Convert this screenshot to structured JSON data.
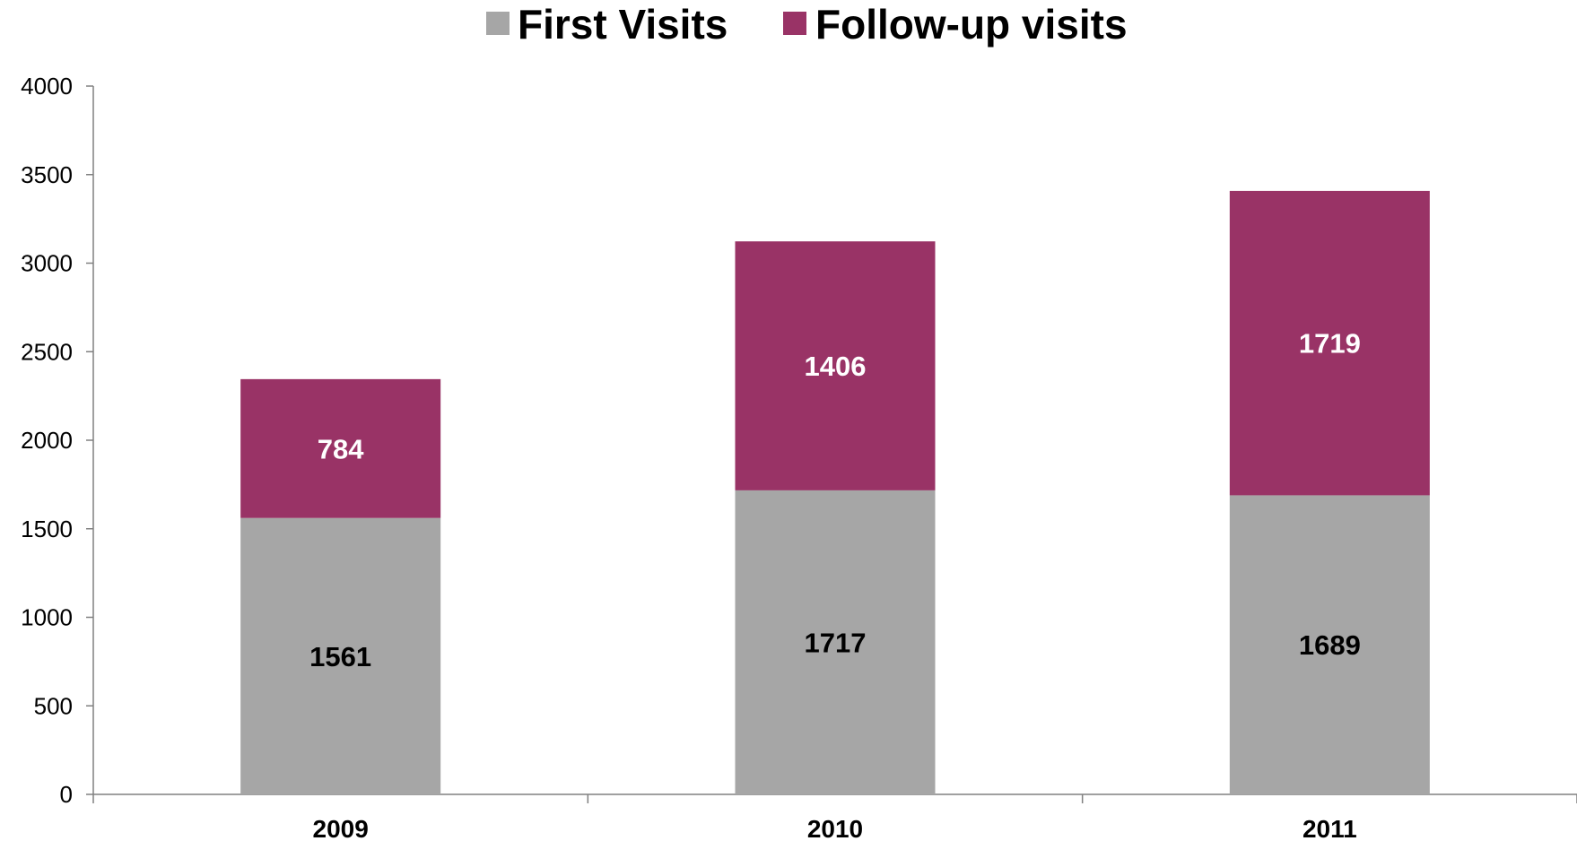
{
  "chart_data": {
    "type": "bar",
    "stacked": true,
    "title": "",
    "xlabel": "",
    "ylabel": "",
    "categories": [
      "2009",
      "2010",
      "2011"
    ],
    "series": [
      {
        "name": "First Visits",
        "values": [
          1561,
          1717,
          1689
        ],
        "color": "#a6a6a6",
        "label_color": "#000000"
      },
      {
        "name": "Follow-up visits",
        "values": [
          784,
          1406,
          1719
        ],
        "color": "#993366",
        "label_color": "#ffffff"
      }
    ],
    "ylim": [
      0,
      4000
    ],
    "yticks": [
      0,
      500,
      1000,
      1500,
      2000,
      2500,
      3000,
      3500,
      4000
    ],
    "grid": false,
    "legend_position": "top"
  }
}
